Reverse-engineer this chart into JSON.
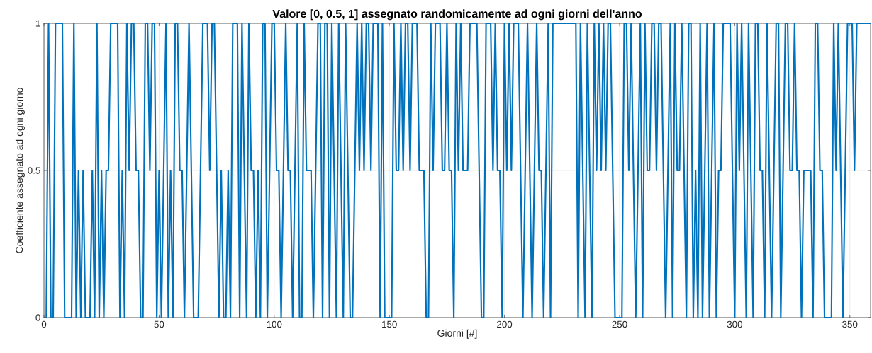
{
  "chart_data": {
    "type": "line",
    "title": "Valore [0, 0.5, 1] assegnato randomicamente ad ogni giorni dell'anno",
    "xlabel": "Giorni [#]",
    "ylabel": "Coefficiente assegnato ad ogni giorno",
    "xlim": [
      0,
      359
    ],
    "ylim": [
      0,
      1
    ],
    "xticks": [
      0,
      50,
      100,
      150,
      200,
      250,
      300,
      350
    ],
    "yticks": [
      0,
      {
        "value": 0.5,
        "label": "0.5"
      },
      1
    ],
    "grid": true,
    "line_style": "solid",
    "series": [
      {
        "color": "#0072bd",
        "x": [
          1,
          2,
          3,
          4,
          5,
          6,
          7,
          8,
          9,
          10,
          11,
          12,
          13,
          14,
          15,
          16,
          17,
          18,
          19,
          20,
          21,
          22,
          23,
          24,
          25,
          26,
          27,
          28,
          29,
          30,
          31,
          32,
          33,
          34,
          35,
          36,
          37,
          38,
          39,
          40,
          41,
          42,
          43,
          44,
          45,
          46,
          47,
          48,
          49,
          50,
          51,
          52,
          53,
          54,
          55,
          56,
          57,
          58,
          59,
          60,
          61,
          62,
          63,
          64,
          65,
          66,
          67,
          68,
          69,
          70,
          71,
          72,
          73,
          74,
          75,
          76,
          77,
          78,
          79,
          80,
          81,
          82,
          83,
          84,
          85,
          86,
          87,
          88,
          89,
          90,
          91,
          92,
          93,
          94,
          95,
          96,
          97,
          98,
          99,
          100,
          101,
          102,
          103,
          104,
          105,
          106,
          107,
          108,
          109,
          110,
          111,
          112,
          113,
          114,
          115,
          116,
          117,
          118,
          119,
          120,
          121,
          122,
          123,
          124,
          125,
          126,
          127,
          128,
          129,
          130,
          131,
          132,
          133,
          134,
          135,
          136,
          137,
          138,
          139,
          140,
          141,
          142,
          143,
          144,
          145,
          146,
          147,
          148,
          149,
          150,
          151,
          152,
          153,
          154,
          155,
          156,
          157,
          158,
          159,
          160,
          161,
          162,
          163,
          164,
          165,
          166,
          167,
          168,
          169,
          170,
          171,
          172,
          173,
          174,
          175,
          176,
          177,
          178,
          179,
          180,
          181,
          182,
          183,
          184,
          185,
          186,
          187,
          188,
          189,
          190,
          191,
          192,
          193,
          194,
          195,
          196,
          197,
          198,
          199,
          200,
          201,
          202,
          203,
          204,
          205,
          206,
          207,
          208,
          209,
          210,
          211,
          212,
          213,
          214,
          215,
          216,
          217,
          218,
          219,
          220,
          221,
          222,
          223,
          224,
          225,
          226,
          227,
          228,
          229,
          230,
          231,
          232,
          233,
          234,
          235,
          236,
          237,
          238,
          239,
          240,
          241,
          242,
          243,
          244,
          245,
          246,
          247,
          248,
          249,
          250,
          251,
          252,
          253,
          254,
          255,
          256,
          257,
          258,
          259,
          260,
          261,
          262,
          263,
          264,
          265,
          266,
          267,
          268,
          269,
          270,
          271,
          272,
          273,
          274,
          275,
          276,
          277,
          278,
          279,
          280,
          281,
          282,
          283,
          284,
          285,
          286,
          287,
          288,
          289,
          290,
          291,
          292,
          293,
          294,
          295,
          296,
          297,
          298,
          299,
          300,
          301,
          302,
          303,
          304,
          305,
          306,
          307,
          308,
          309,
          310,
          311,
          312,
          313,
          314,
          315,
          316,
          317,
          318,
          319,
          320,
          321,
          322,
          323,
          324,
          325,
          326,
          327,
          328,
          329,
          330,
          331,
          332,
          333,
          334,
          335,
          336,
          337,
          338,
          339,
          340,
          341,
          342,
          343,
          344,
          345,
          346,
          347,
          348,
          349,
          350,
          351,
          352,
          353,
          354,
          355,
          356,
          357,
          358,
          359
        ],
        "values": [
          0,
          1,
          0,
          0,
          1,
          1,
          1,
          1,
          0,
          0,
          0,
          0,
          1,
          0,
          0.5,
          0,
          0.5,
          0,
          0,
          0,
          0.5,
          0,
          1,
          0,
          0.5,
          0,
          0.5,
          0.5,
          1,
          1,
          1,
          1,
          0,
          0.5,
          0,
          1,
          0.5,
          1,
          1,
          0.5,
          0.5,
          0,
          0,
          1,
          1,
          0.5,
          1,
          1,
          0,
          0.5,
          0,
          0.5,
          1,
          0,
          0.5,
          0,
          1,
          1,
          0.5,
          0.5,
          0,
          0.5,
          1,
          0.5,
          0,
          0,
          0,
          0.5,
          1,
          1,
          1,
          0.5,
          1,
          1,
          0.5,
          0,
          0.5,
          0,
          0,
          0.5,
          0,
          1,
          1,
          1,
          0,
          1,
          0.5,
          0,
          1,
          0.5,
          0.5,
          0,
          0.5,
          0,
          1,
          1,
          0,
          0.5,
          1,
          1,
          0.5,
          0.5,
          0,
          0.5,
          1,
          0.5,
          0.5,
          0,
          0.5,
          1,
          0,
          0,
          1,
          0.5,
          0.5,
          0.5,
          0,
          0.5,
          1,
          1,
          0,
          1,
          1,
          0,
          1,
          0.5,
          0,
          1,
          0.5,
          0,
          1,
          0.5,
          0,
          0,
          0.5,
          1,
          0.5,
          1,
          0.5,
          1,
          1,
          0.5,
          1,
          1,
          1,
          0,
          1,
          0,
          0,
          0,
          0,
          1,
          0.5,
          0.5,
          1,
          0.5,
          1,
          1,
          0.5,
          1,
          1,
          1,
          0.5,
          0.5,
          0.5,
          0,
          0,
          1,
          0.5,
          1,
          1,
          1,
          0.5,
          0.5,
          1,
          0.5,
          0.5,
          0,
          1,
          0.5,
          1,
          0.5,
          0.5,
          0.5,
          1,
          1,
          1,
          1,
          0.5,
          0,
          0,
          1,
          1,
          1,
          0.5,
          1,
          0.5,
          0.5,
          0,
          1,
          0.5,
          1,
          0.5,
          1,
          1,
          1,
          0.5,
          0,
          0.5,
          1,
          0.5,
          0,
          0.5,
          1,
          0.5,
          0.5,
          0,
          0.5,
          1,
          0,
          1,
          1,
          1,
          1,
          1,
          1,
          1,
          1,
          1,
          1,
          1,
          0,
          1,
          0.5,
          0,
          1,
          0.5,
          0,
          1,
          0.5,
          1,
          0.5,
          1,
          0.5,
          1,
          1,
          0.5,
          0,
          0,
          0,
          0,
          1,
          1,
          0.5,
          1,
          0.5,
          0,
          0.5,
          1,
          0,
          1,
          0.5,
          0.5,
          1,
          1,
          0.5,
          1,
          1,
          0.5,
          0,
          0.5,
          1,
          0,
          1,
          0.5,
          0.5,
          1,
          0.5,
          0,
          1,
          1,
          0,
          0.5,
          0,
          1,
          0,
          0.5,
          1,
          0,
          0.5,
          1,
          0,
          0.5,
          0.5,
          1,
          1,
          1,
          1,
          0.5,
          0,
          1,
          0.5,
          1,
          0.5,
          0,
          1,
          0.5,
          0,
          1,
          1,
          0.5,
          0.5,
          0,
          1,
          0.5,
          0,
          0.5,
          1,
          1,
          0,
          0.5,
          1,
          1,
          0.5,
          0.5,
          1,
          0.5,
          0.5,
          0,
          0.5,
          0.5,
          0.5,
          0.5,
          0,
          1,
          1,
          0.5,
          0.5,
          0,
          0,
          0,
          0,
          1,
          0.5,
          1,
          0.5,
          0,
          0.5,
          1,
          1,
          1,
          0.5,
          1,
          1,
          1,
          1,
          1,
          1,
          1
        ]
      }
    ]
  }
}
